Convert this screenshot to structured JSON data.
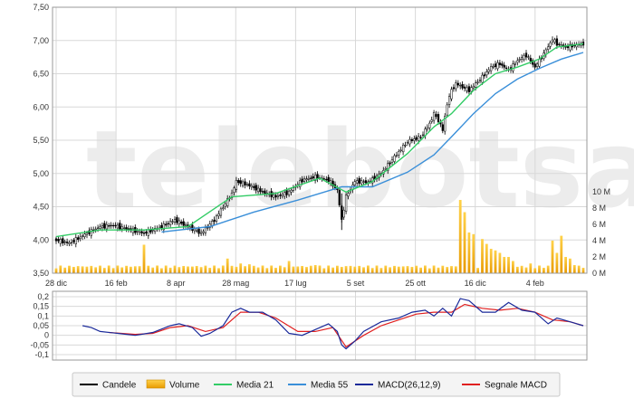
{
  "chart_data": [
    {
      "type": "candlestick",
      "panel": "price",
      "ylim": [
        3.5,
        7.5
      ],
      "yticks": [
        "7,50",
        "7,00",
        "6,50",
        "6,00",
        "5,50",
        "5,00",
        "4,50",
        "4,00",
        "3,50"
      ],
      "xticks": [
        "28 dic",
        "16 feb",
        "8 apr",
        "28 mag",
        "17 lug",
        "5 set",
        "25 ott",
        "16 dic",
        "4 feb"
      ],
      "close_path": [
        [
          0,
          4.0
        ],
        [
          3,
          3.95
        ],
        [
          7,
          4.1
        ],
        [
          10,
          4.2
        ],
        [
          13,
          4.22
        ],
        [
          16,
          4.17
        ],
        [
          20,
          4.1
        ],
        [
          24,
          4.2
        ],
        [
          27,
          4.3
        ],
        [
          30,
          4.2
        ],
        [
          33,
          4.1
        ],
        [
          36,
          4.3
        ],
        [
          38,
          4.5
        ],
        [
          40,
          4.7
        ],
        [
          41,
          4.88
        ],
        [
          44,
          4.82
        ],
        [
          47,
          4.72
        ],
        [
          50,
          4.65
        ],
        [
          53,
          4.72
        ],
        [
          56,
          4.9
        ],
        [
          59,
          4.95
        ],
        [
          62,
          4.9
        ],
        [
          64,
          4.75
        ],
        [
          65,
          4.3
        ],
        [
          66,
          4.65
        ],
        [
          68,
          4.88
        ],
        [
          71,
          4.87
        ],
        [
          74,
          5.0
        ],
        [
          77,
          5.25
        ],
        [
          80,
          5.48
        ],
        [
          83,
          5.55
        ],
        [
          85,
          5.75
        ],
        [
          86,
          5.9
        ],
        [
          87,
          5.8
        ],
        [
          88,
          5.65
        ],
        [
          89,
          6.05
        ],
        [
          90,
          6.25
        ],
        [
          91,
          6.35
        ],
        [
          94,
          6.25
        ],
        [
          97,
          6.45
        ],
        [
          99,
          6.6
        ],
        [
          101,
          6.65
        ],
        [
          103,
          6.55
        ],
        [
          105,
          6.7
        ],
        [
          107,
          6.78
        ],
        [
          109,
          6.6
        ],
        [
          111,
          6.8
        ],
        [
          113,
          7.02
        ],
        [
          114,
          6.95
        ],
        [
          116,
          6.9
        ],
        [
          120,
          6.95
        ]
      ],
      "media21": [
        [
          0,
          4.05
        ],
        [
          10,
          4.15
        ],
        [
          20,
          4.15
        ],
        [
          30,
          4.2
        ],
        [
          40,
          4.65
        ],
        [
          50,
          4.7
        ],
        [
          60,
          4.93
        ],
        [
          66,
          4.72
        ],
        [
          72,
          4.88
        ],
        [
          80,
          5.3
        ],
        [
          86,
          5.7
        ],
        [
          90,
          5.9
        ],
        [
          95,
          6.25
        ],
        [
          100,
          6.5
        ],
        [
          105,
          6.6
        ],
        [
          110,
          6.72
        ],
        [
          114,
          6.9
        ],
        [
          120,
          6.95
        ]
      ],
      "media55": [
        [
          24,
          4.12
        ],
        [
          35,
          4.2
        ],
        [
          45,
          4.42
        ],
        [
          55,
          4.6
        ],
        [
          65,
          4.8
        ],
        [
          72,
          4.8
        ],
        [
          80,
          5.02
        ],
        [
          86,
          5.28
        ],
        [
          90,
          5.55
        ],
        [
          95,
          5.9
        ],
        [
          100,
          6.2
        ],
        [
          105,
          6.42
        ],
        [
          110,
          6.58
        ],
        [
          115,
          6.72
        ],
        [
          120,
          6.82
        ]
      ]
    },
    {
      "type": "bar",
      "panel": "volume",
      "ylim": [
        0,
        10
      ],
      "yticks": [
        "10 M",
        "8 M",
        "6 M",
        "4 M",
        "2 M",
        "0 M"
      ],
      "baseline": 0.6,
      "spikes": [
        [
          20,
          3.5
        ],
        [
          39,
          1.8
        ],
        [
          42,
          1.2
        ],
        [
          44,
          1.1
        ],
        [
          53,
          1.5
        ],
        [
          59,
          1.0
        ],
        [
          67,
          0.9
        ],
        [
          92,
          9.0
        ],
        [
          93,
          7.5
        ],
        [
          94,
          5.0
        ],
        [
          95,
          4.8
        ],
        [
          97,
          4.2
        ],
        [
          98,
          3.6
        ],
        [
          99,
          3.0
        ],
        [
          100,
          2.8
        ],
        [
          101,
          2.5
        ],
        [
          102,
          2.0
        ],
        [
          103,
          2.0
        ],
        [
          104,
          1.5
        ],
        [
          108,
          1.2
        ],
        [
          113,
          4.0
        ],
        [
          114,
          2.5
        ],
        [
          115,
          4.6
        ],
        [
          116,
          2.0
        ],
        [
          117,
          1.8
        ],
        [
          118,
          1.0
        ]
      ]
    },
    {
      "type": "line",
      "panel": "macd",
      "ylim": [
        -0.1,
        0.2
      ],
      "yticks": [
        "0,2",
        "0,15",
        "0,1",
        "0,05",
        "0",
        "-0,05",
        "-0,1"
      ],
      "series": [
        {
          "name": "MACD(26,12,9)",
          "values": [
            [
              6,
              0.05
            ],
            [
              8,
              0.04
            ],
            [
              10,
              0.02
            ],
            [
              14,
              0.01
            ],
            [
              18,
              0.0
            ],
            [
              22,
              0.015
            ],
            [
              26,
              0.05
            ],
            [
              28,
              0.06
            ],
            [
              31,
              0.04
            ],
            [
              33,
              -0.005
            ],
            [
              35,
              0.01
            ],
            [
              38,
              0.05
            ],
            [
              40,
              0.12
            ],
            [
              42,
              0.14
            ],
            [
              44,
              0.12
            ],
            [
              47,
              0.12
            ],
            [
              50,
              0.08
            ],
            [
              53,
              0.01
            ],
            [
              56,
              0.0
            ],
            [
              59,
              0.03
            ],
            [
              62,
              0.06
            ],
            [
              64,
              0.02
            ],
            [
              65,
              -0.05
            ],
            [
              66,
              -0.07
            ],
            [
              68,
              -0.03
            ],
            [
              70,
              0.02
            ],
            [
              74,
              0.07
            ],
            [
              78,
              0.09
            ],
            [
              81,
              0.12
            ],
            [
              84,
              0.13
            ],
            [
              86,
              0.1
            ],
            [
              88,
              0.14
            ],
            [
              90,
              0.1
            ],
            [
              92,
              0.19
            ],
            [
              94,
              0.18
            ],
            [
              97,
              0.12
            ],
            [
              100,
              0.12
            ],
            [
              103,
              0.17
            ],
            [
              106,
              0.13
            ],
            [
              109,
              0.12
            ],
            [
              112,
              0.06
            ],
            [
              114,
              0.09
            ],
            [
              117,
              0.07
            ],
            [
              120,
              0.05
            ]
          ]
        },
        {
          "name": "Segnale MACD",
          "values": [
            [
              12,
              0.015
            ],
            [
              18,
              0.005
            ],
            [
              22,
              0.01
            ],
            [
              26,
              0.04
            ],
            [
              30,
              0.05
            ],
            [
              34,
              0.02
            ],
            [
              38,
              0.04
            ],
            [
              42,
              0.12
            ],
            [
              46,
              0.12
            ],
            [
              50,
              0.09
            ],
            [
              55,
              0.02
            ],
            [
              59,
              0.02
            ],
            [
              63,
              0.04
            ],
            [
              66,
              -0.06
            ],
            [
              70,
              0.0
            ],
            [
              74,
              0.05
            ],
            [
              78,
              0.08
            ],
            [
              82,
              0.11
            ],
            [
              86,
              0.12
            ],
            [
              90,
              0.12
            ],
            [
              93,
              0.16
            ],
            [
              97,
              0.14
            ],
            [
              101,
              0.13
            ],
            [
              105,
              0.14
            ],
            [
              109,
              0.12
            ],
            [
              113,
              0.08
            ],
            [
              117,
              0.07
            ],
            [
              120,
              0.05
            ]
          ]
        }
      ]
    }
  ],
  "watermark": "telebotsa",
  "legend": [
    {
      "name": "Candele",
      "kind": "line",
      "color": "#000000"
    },
    {
      "name": "Volume",
      "kind": "box",
      "color": "#f5b400"
    },
    {
      "name": "Media 21",
      "kind": "line",
      "color": "#33cc66"
    },
    {
      "name": "Media 55",
      "kind": "line",
      "color": "#3a8fd9"
    },
    {
      "name": "MACD(26,12,9)",
      "kind": "line",
      "color": "#1a2a9a"
    },
    {
      "name": "Segnale MACD",
      "kind": "line",
      "color": "#e02020"
    }
  ],
  "colors": {
    "candle": "#000000",
    "volume": "#f5b400",
    "media21": "#33cc66",
    "media55": "#3a8fd9",
    "macd": "#1a2a9a",
    "signal": "#e02020",
    "grid": "#d8d8d8"
  }
}
